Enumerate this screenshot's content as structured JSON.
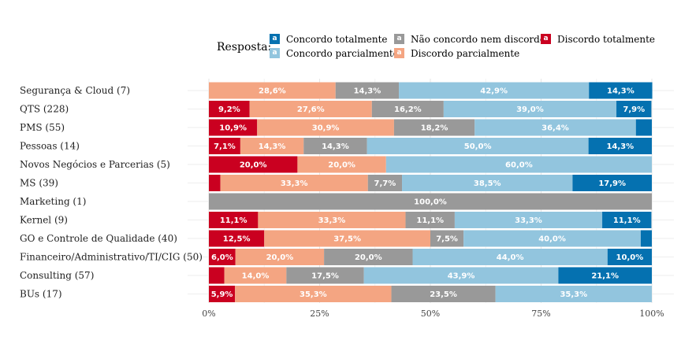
{
  "legend": {
    "title": "Resposta:",
    "key_glyph": "a",
    "items": [
      {
        "label": "Concordo totalmente",
        "color": "#0571b0"
      },
      {
        "label": "Concordo parcialmente",
        "color": "#92c5de"
      },
      {
        "label": "Não concordo nem discordo",
        "color": "#999999"
      },
      {
        "label": "Discordo parcialmente",
        "color": "#f4a582"
      },
      {
        "label": "Discordo totalmente",
        "color": "#ca0020"
      }
    ]
  },
  "chart_data": {
    "type": "bar",
    "orientation": "horizontal",
    "stacked": true,
    "xlim": [
      0,
      100
    ],
    "x_ticks": [
      "0%",
      "25%",
      "50%",
      "75%",
      "100%"
    ],
    "legend_position": "top",
    "categories": [
      "Segurança & Cloud (7)",
      "QTS (228)",
      "PMS (55)",
      "Pessoas (14)",
      "Novos Negócios e Parcerias (5)",
      "MS (39)",
      "Marketing (1)",
      "Kernel (9)",
      "GO e Controle de Qualidade (40)",
      "Financeiro/Administrativo/TI/CIG (50)",
      "Consulting (57)",
      "BUs (17)"
    ],
    "series": [
      {
        "name": "Discordo totalmente",
        "color": "#ca0020",
        "values": [
          0,
          9.2,
          10.9,
          7.1,
          20.0,
          2.6,
          0,
          11.1,
          12.5,
          6.0,
          3.5,
          5.9
        ],
        "labels": [
          "",
          "9,2%",
          "10,9%",
          "7,1%",
          "20,0%",
          "",
          "",
          "11,1%",
          "12,5%",
          "6,0%",
          "",
          "5,9%"
        ]
      },
      {
        "name": "Discordo parcialmente",
        "color": "#f4a582",
        "values": [
          28.6,
          27.6,
          30.9,
          14.3,
          20.0,
          33.3,
          0,
          33.3,
          37.5,
          20.0,
          14.0,
          35.3
        ],
        "labels": [
          "28,6%",
          "27,6%",
          "30,9%",
          "14,3%",
          "20,0%",
          "33,3%",
          "",
          "33,3%",
          "37,5%",
          "20,0%",
          "14,0%",
          "35,3%"
        ]
      },
      {
        "name": "Não concordo nem discordo",
        "color": "#999999",
        "values": [
          14.3,
          16.2,
          18.2,
          14.3,
          0,
          7.7,
          100.0,
          11.1,
          7.5,
          20.0,
          17.5,
          23.5
        ],
        "labels": [
          "14,3%",
          "16,2%",
          "18,2%",
          "14,3%",
          "",
          "7,7%",
          "100,0%",
          "11,1%",
          "7,5%",
          "20,0%",
          "17,5%",
          "23,5%"
        ]
      },
      {
        "name": "Concordo parcialmente",
        "color": "#92c5de",
        "values": [
          42.9,
          39.0,
          36.4,
          50.0,
          60.0,
          38.5,
          0,
          33.3,
          40.0,
          44.0,
          43.9,
          35.3
        ],
        "labels": [
          "42,9%",
          "39,0%",
          "36,4%",
          "50,0%",
          "60,0%",
          "38,5%",
          "",
          "33,3%",
          "40,0%",
          "44,0%",
          "43,9%",
          "35,3%"
        ]
      },
      {
        "name": "Concordo totalmente",
        "color": "#0571b0",
        "values": [
          14.3,
          7.9,
          3.6,
          14.3,
          0,
          17.9,
          0,
          11.1,
          2.5,
          10.0,
          21.1,
          0
        ],
        "labels": [
          "14,3%",
          "7,9%",
          "",
          "14,3%",
          "",
          "17,9%",
          "",
          "11,1%",
          "",
          "10,0%",
          "21,1%",
          ""
        ]
      }
    ]
  }
}
